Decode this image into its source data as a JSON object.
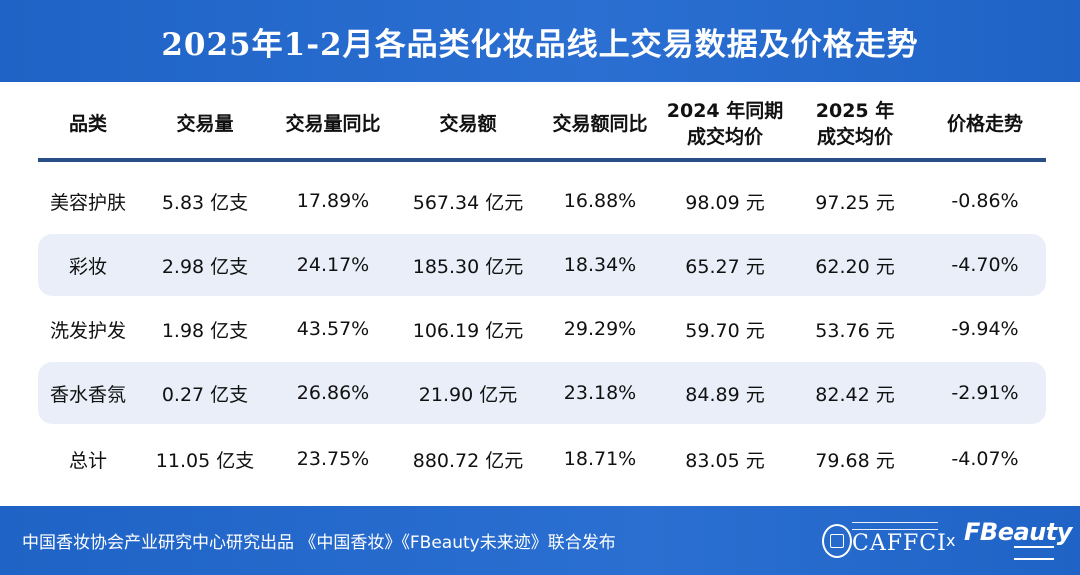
{
  "title": "2025年1-2月各品类化妆品线上交易数据及价格走势",
  "table": {
    "headers": [
      {
        "line1": "品类",
        "line2": ""
      },
      {
        "line1": "交易量",
        "line2": ""
      },
      {
        "line1": "交易量同比",
        "line2": ""
      },
      {
        "line1": "交易额",
        "line2": ""
      },
      {
        "line1": "交易额同比",
        "line2": ""
      },
      {
        "line1": "2024 年同期",
        "line2": "成交均价"
      },
      {
        "line1": "2025 年",
        "line2": "成交均价"
      },
      {
        "line1": "价格走势",
        "line2": ""
      }
    ],
    "rows": [
      [
        "美容护肤",
        "5.83 亿支",
        "17.89%",
        "567.34 亿元",
        "16.88%",
        "98.09 元",
        "97.25 元",
        "-0.86%"
      ],
      [
        "彩妆",
        "2.98 亿支",
        "24.17%",
        "185.30 亿元",
        "18.34%",
        "65.27 元",
        "62.20 元",
        "-4.70%"
      ],
      [
        "洗发护发",
        "1.98 亿支",
        "43.57%",
        "106.19 亿元",
        "29.29%",
        "59.70 元",
        "53.76 元",
        "-9.94%"
      ],
      [
        "香水香氛",
        "0.27 亿支",
        "26.86%",
        "21.90 亿元",
        "23.18%",
        "84.89 元",
        "82.42 元",
        "-2.91%"
      ],
      [
        "总计",
        "11.05 亿支",
        "23.75%",
        "880.72 亿元",
        "18.71%",
        "83.05 元",
        "79.68 元",
        "-4.07%"
      ]
    ]
  },
  "footer": {
    "credit": "中国香妆协会产业研究中心研究出品 《中国香妆》《FBeauty未来迹》联合发布",
    "logo_caffci": "CAFFCI",
    "times": "x",
    "logo_fbeauty": "FBeauty"
  },
  "colors": {
    "brand_blue": "#1f63c6",
    "row_alt": "#e9eef9",
    "divider": "#2a4f86"
  }
}
